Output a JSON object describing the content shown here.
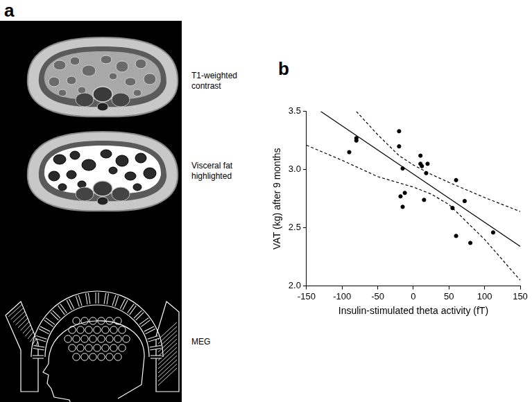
{
  "panel_a": {
    "label": "a",
    "images": [
      {
        "caption": [
          "T1-weighted",
          "contrast"
        ]
      },
      {
        "caption": [
          "Visceral fat",
          "highlighted"
        ]
      },
      {
        "caption": [
          "MEG"
        ]
      }
    ]
  },
  "panel_b": {
    "label": "b"
  },
  "chart_data": {
    "type": "scatter",
    "x_label": "Insulin-stimulated theta activity (fT)",
    "y_label": "VAT (kg) after 9 months",
    "xlim": [
      -150,
      150
    ],
    "xticks": [
      -150,
      -100,
      -50,
      0,
      50,
      100,
      150
    ],
    "ylim": [
      2.0,
      3.5
    ],
    "yticks": [
      {
        "value": 2.0,
        "label": "2.0"
      },
      {
        "value": 2.5,
        "label": "2.5"
      },
      {
        "value": 3.0,
        "label": "3.0"
      },
      {
        "value": 3.5,
        "label": "3.5"
      }
    ],
    "grid": false,
    "series": [
      {
        "type": "scatter",
        "color": "#000000",
        "marker": "circle",
        "x": [
          -90,
          -80,
          -80,
          -20,
          -20,
          -15,
          -18,
          -15,
          -12,
          10,
          10,
          12,
          15,
          18,
          20,
          55,
          60,
          60,
          72,
          80,
          112
        ],
        "values": [
          3.15,
          3.25,
          3.27,
          3.33,
          3.2,
          3.01,
          2.77,
          2.68,
          2.8,
          3.12,
          3.05,
          3.03,
          2.74,
          2.97,
          3.05,
          2.67,
          2.91,
          2.43,
          2.73,
          2.37,
          2.46
        ]
      },
      {
        "type": "line",
        "color": "#000000",
        "line_style": "solid",
        "x": [
          -130,
          150
        ],
        "values": [
          3.5,
          2.34
        ]
      },
      {
        "type": "line",
        "color": "#000000",
        "line_style": "dashed",
        "x": [
          -80,
          -50,
          -20,
          0,
          25,
          50,
          100,
          150
        ],
        "values": [
          3.5,
          3.3,
          3.12,
          3.04,
          2.96,
          2.89,
          2.76,
          2.64
        ]
      },
      {
        "type": "line",
        "color": "#000000",
        "line_style": "dashed",
        "x": [
          -150,
          -100,
          -50,
          0,
          25,
          50,
          100,
          150
        ],
        "values": [
          3.21,
          3.08,
          2.94,
          2.85,
          2.79,
          2.7,
          2.4,
          2.05
        ]
      }
    ]
  }
}
